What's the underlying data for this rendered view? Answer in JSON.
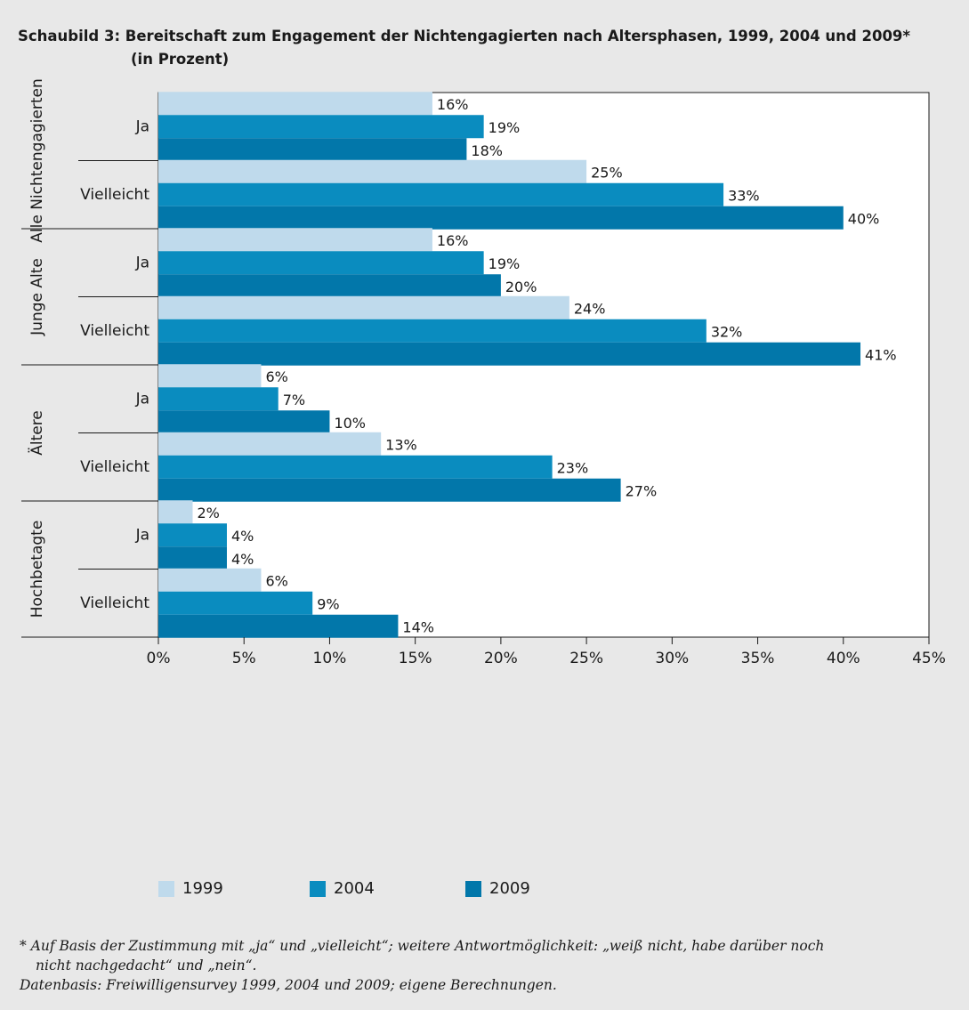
{
  "title": {
    "line1": "Schaubild 3: Bereitschaft zum Engagement der Nichtengagierten nach Altersphasen, 1999, 2004 und 2009*",
    "line2": "(in Prozent)"
  },
  "chart_data": {
    "type": "bar",
    "orientation": "horizontal",
    "xlim": [
      0,
      45
    ],
    "x_ticks": [
      0,
      5,
      10,
      15,
      20,
      25,
      30,
      35,
      40,
      45
    ],
    "x_tick_labels": [
      "0%",
      "5%",
      "10%",
      "15%",
      "20%",
      "25%",
      "30%",
      "35%",
      "40%",
      "45%"
    ],
    "value_suffix": "%",
    "legend_position": "bottom",
    "series": [
      {
        "name": "1999",
        "color": "#bfdaec"
      },
      {
        "name": "2004",
        "color": "#0a8cbf"
      },
      {
        "name": "2009",
        "color": "#0277aa"
      }
    ],
    "groups": [
      {
        "label": "Alle Nichtengagierten",
        "rows": [
          {
            "label": "Ja",
            "values": [
              16,
              19,
              18
            ]
          },
          {
            "label": "Vielleicht",
            "values": [
              25,
              33,
              40
            ]
          }
        ]
      },
      {
        "label": "Junge Alte",
        "rows": [
          {
            "label": "Ja",
            "values": [
              16,
              19,
              20
            ]
          },
          {
            "label": "Vielleicht",
            "values": [
              24,
              32,
              41
            ]
          }
        ]
      },
      {
        "label": "Ältere",
        "rows": [
          {
            "label": "Ja",
            "values": [
              6,
              7,
              10
            ]
          },
          {
            "label": "Vielleicht",
            "values": [
              13,
              23,
              27
            ]
          }
        ]
      },
      {
        "label": "Hochbetagte",
        "rows": [
          {
            "label": "Ja",
            "values": [
              2,
              4,
              4
            ]
          },
          {
            "label": "Vielleicht",
            "values": [
              6,
              9,
              14
            ]
          }
        ]
      }
    ]
  },
  "footnotes": {
    "line1": "* Auf Basis der Zustimmung mit „ja“ und „vielleicht“; weitere Antwortmöglichkeit: „weiß nicht, habe darüber noch",
    "line2": "nicht nachgedacht“ und „nein“.",
    "line3": "Datenbasis: Freiwilligensurvey 1999, 2004 und 2009; eigene Berechnungen."
  }
}
